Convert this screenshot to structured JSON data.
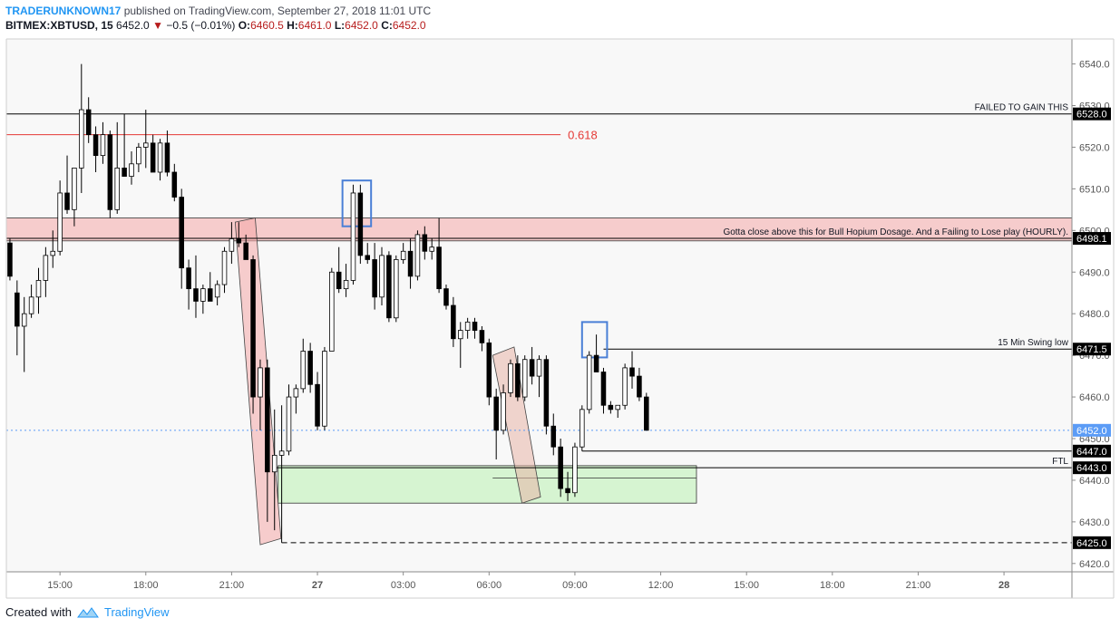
{
  "header": {
    "author": "TRADERUNKNOWN17",
    "published": "published on TradingView.com, September 27, 2018 11:01 UTC",
    "symbol": "BITMEX:XBTUSD, 15",
    "last": "6452.0",
    "change": "−0.5 (−0.01%)",
    "open_label": "O:",
    "open": "6460.5",
    "high_label": "H:",
    "high": "6461.0",
    "low_label": "L:",
    "low": "6452.0",
    "close_label": "C:",
    "close": "6452.0"
  },
  "footer": {
    "created_with": "Created with",
    "brand": "TradingView"
  },
  "colors": {
    "up": "#ffffff",
    "down": "#000000",
    "red_line": "#e53935",
    "zone_red": "#f4a7a7",
    "zone_green": "#b9f0b0",
    "box_blue": "#4a7fd6",
    "price_tag": "#000000",
    "last_tag": "#5b9cf6"
  },
  "chart_data": {
    "type": "candlestick",
    "interval_minutes": 15,
    "ylim": [
      6418,
      6546
    ],
    "y_ticks": [
      6420,
      6430,
      6440,
      6450,
      6460,
      6470,
      6480,
      6490,
      6500,
      6510,
      6520,
      6530,
      6540
    ],
    "x_ticks": [
      {
        "t": 0,
        "label": "15:00"
      },
      {
        "t": 12,
        "label": "18:00"
      },
      {
        "t": 24,
        "label": "21:00"
      },
      {
        "t": 36,
        "label": "27"
      },
      {
        "t": 48,
        "label": "03:00"
      },
      {
        "t": 60,
        "label": "06:00"
      },
      {
        "t": 72,
        "label": "09:00"
      },
      {
        "t": 84,
        "label": "12:00"
      },
      {
        "t": 96,
        "label": "15:00"
      },
      {
        "t": 108,
        "label": "18:00"
      },
      {
        "t": 120,
        "label": "21:00"
      },
      {
        "t": 132,
        "label": "28"
      }
    ],
    "x_range": [
      -7.5,
      141.5
    ],
    "candles": [
      {
        "t": -7,
        "o": 6497,
        "h": 6498,
        "l": 6488,
        "c": 6489
      },
      {
        "t": -6,
        "o": 6485,
        "h": 6488,
        "l": 6470,
        "c": 6477
      },
      {
        "t": -5,
        "o": 6477,
        "h": 6484,
        "l": 6466,
        "c": 6480
      },
      {
        "t": -4,
        "o": 6480,
        "h": 6487,
        "l": 6479,
        "c": 6484
      },
      {
        "t": -3,
        "o": 6484,
        "h": 6491,
        "l": 6480,
        "c": 6488
      },
      {
        "t": -2,
        "o": 6488,
        "h": 6496,
        "l": 6484,
        "c": 6494
      },
      {
        "t": -1,
        "o": 6494,
        "h": 6500,
        "l": 6491,
        "c": 6495
      },
      {
        "t": 0,
        "o": 6495,
        "h": 6512,
        "l": 6494,
        "c": 6509
      },
      {
        "t": 1,
        "o": 6509,
        "h": 6518,
        "l": 6504,
        "c": 6505
      },
      {
        "t": 2,
        "o": 6505,
        "h": 6514,
        "l": 6501,
        "c": 6515
      },
      {
        "t": 3,
        "o": 6515,
        "h": 6540,
        "l": 6509,
        "c": 6529
      },
      {
        "t": 4,
        "o": 6529,
        "h": 6532,
        "l": 6521,
        "c": 6523
      },
      {
        "t": 5,
        "o": 6523,
        "h": 6525,
        "l": 6514,
        "c": 6518
      },
      {
        "t": 6,
        "o": 6518,
        "h": 6526,
        "l": 6516,
        "c": 6523
      },
      {
        "t": 7,
        "o": 6523,
        "h": 6524,
        "l": 6503,
        "c": 6505
      },
      {
        "t": 8,
        "o": 6505,
        "h": 6526,
        "l": 6504,
        "c": 6515
      },
      {
        "t": 9,
        "o": 6515,
        "h": 6528,
        "l": 6513,
        "c": 6513
      },
      {
        "t": 10,
        "o": 6513,
        "h": 6519,
        "l": 6511,
        "c": 6516
      },
      {
        "t": 11,
        "o": 6516,
        "h": 6521,
        "l": 6514,
        "c": 6520
      },
      {
        "t": 12,
        "o": 6520,
        "h": 6529,
        "l": 6515,
        "c": 6521
      },
      {
        "t": 13,
        "o": 6521,
        "h": 6523,
        "l": 6514,
        "c": 6514
      },
      {
        "t": 14,
        "o": 6514,
        "h": 6522,
        "l": 6512,
        "c": 6521
      },
      {
        "t": 15,
        "o": 6521,
        "h": 6524,
        "l": 6513,
        "c": 6514
      },
      {
        "t": 16,
        "o": 6514,
        "h": 6516,
        "l": 6507,
        "c": 6508
      },
      {
        "t": 17,
        "o": 6508,
        "h": 6510,
        "l": 6486,
        "c": 6491
      },
      {
        "t": 18,
        "o": 6491,
        "h": 6493,
        "l": 6481,
        "c": 6486
      },
      {
        "t": 19,
        "o": 6486,
        "h": 6494,
        "l": 6479,
        "c": 6483
      },
      {
        "t": 20,
        "o": 6483,
        "h": 6487,
        "l": 6480,
        "c": 6486
      },
      {
        "t": 21,
        "o": 6486,
        "h": 6490,
        "l": 6483,
        "c": 6483
      },
      {
        "t": 22,
        "o": 6484,
        "h": 6488,
        "l": 6482,
        "c": 6487
      },
      {
        "t": 23,
        "o": 6487,
        "h": 6496,
        "l": 6485,
        "c": 6495
      },
      {
        "t": 24,
        "o": 6495,
        "h": 6502,
        "l": 6492,
        "c": 6498
      },
      {
        "t": 25,
        "o": 6498,
        "h": 6502,
        "l": 6496,
        "c": 6497
      },
      {
        "t": 26,
        "o": 6497,
        "h": 6499,
        "l": 6493,
        "c": 6493
      },
      {
        "t": 27,
        "o": 6493,
        "h": 6494,
        "l": 6456,
        "c": 6460
      },
      {
        "t": 28,
        "o": 6460,
        "h": 6469,
        "l": 6452,
        "c": 6467
      },
      {
        "t": 29,
        "o": 6467,
        "h": 6469,
        "l": 6430,
        "c": 6442
      },
      {
        "t": 30,
        "o": 6442,
        "h": 6457,
        "l": 6428,
        "c": 6446
      },
      {
        "t": 31,
        "o": 6446,
        "h": 6458,
        "l": 6425,
        "c": 6447
      },
      {
        "t": 32,
        "o": 6447,
        "h": 6463,
        "l": 6446,
        "c": 6460
      },
      {
        "t": 33,
        "o": 6460,
        "h": 6463,
        "l": 6456,
        "c": 6462
      },
      {
        "t": 34,
        "o": 6462,
        "h": 6474,
        "l": 6461,
        "c": 6471
      },
      {
        "t": 35,
        "o": 6471,
        "h": 6473,
        "l": 6461,
        "c": 6463
      },
      {
        "t": 36,
        "o": 6463,
        "h": 6466,
        "l": 6452,
        "c": 6453
      },
      {
        "t": 37,
        "o": 6453,
        "h": 6472,
        "l": 6452,
        "c": 6471
      },
      {
        "t": 38,
        "o": 6471,
        "h": 6491,
        "l": 6471,
        "c": 6490
      },
      {
        "t": 39,
        "o": 6490,
        "h": 6496,
        "l": 6485,
        "c": 6486
      },
      {
        "t": 40,
        "o": 6486,
        "h": 6492,
        "l": 6484,
        "c": 6488
      },
      {
        "t": 41,
        "o": 6488,
        "h": 6511,
        "l": 6487,
        "c": 6509
      },
      {
        "t": 42,
        "o": 6509,
        "h": 6511,
        "l": 6492,
        "c": 6494
      },
      {
        "t": 43,
        "o": 6494,
        "h": 6497,
        "l": 6492,
        "c": 6493
      },
      {
        "t": 44,
        "o": 6493,
        "h": 6497,
        "l": 6481,
        "c": 6484
      },
      {
        "t": 45,
        "o": 6484,
        "h": 6496,
        "l": 6482,
        "c": 6494
      },
      {
        "t": 46,
        "o": 6494,
        "h": 6495,
        "l": 6478,
        "c": 6479
      },
      {
        "t": 47,
        "o": 6479,
        "h": 6494,
        "l": 6478,
        "c": 6493
      },
      {
        "t": 48,
        "o": 6493,
        "h": 6497,
        "l": 6492,
        "c": 6495
      },
      {
        "t": 49,
        "o": 6495,
        "h": 6498,
        "l": 6486,
        "c": 6489
      },
      {
        "t": 50,
        "o": 6489,
        "h": 6500,
        "l": 6488,
        "c": 6499
      },
      {
        "t": 51,
        "o": 6499,
        "h": 6501,
        "l": 6493,
        "c": 6495
      },
      {
        "t": 52,
        "o": 6495,
        "h": 6498,
        "l": 6493,
        "c": 6496
      },
      {
        "t": 53,
        "o": 6496,
        "h": 6503,
        "l": 6485,
        "c": 6486
      },
      {
        "t": 54,
        "o": 6486,
        "h": 6487,
        "l": 6481,
        "c": 6482
      },
      {
        "t": 55,
        "o": 6482,
        "h": 6484,
        "l": 6472,
        "c": 6474
      },
      {
        "t": 56,
        "o": 6474,
        "h": 6478,
        "l": 6467,
        "c": 6476
      },
      {
        "t": 57,
        "o": 6476,
        "h": 6479,
        "l": 6474,
        "c": 6478
      },
      {
        "t": 58,
        "o": 6478,
        "h": 6479,
        "l": 6474,
        "c": 6476
      },
      {
        "t": 59,
        "o": 6476,
        "h": 6477,
        "l": 6471,
        "c": 6473
      },
      {
        "t": 60,
        "o": 6473,
        "h": 6474,
        "l": 6458,
        "c": 6460
      },
      {
        "t": 61,
        "o": 6460,
        "h": 6462,
        "l": 6445,
        "c": 6452
      },
      {
        "t": 62,
        "o": 6452,
        "h": 6463,
        "l": 6451,
        "c": 6461
      },
      {
        "t": 63,
        "o": 6461,
        "h": 6469,
        "l": 6460,
        "c": 6468
      },
      {
        "t": 64,
        "o": 6468,
        "h": 6470,
        "l": 6459,
        "c": 6460
      },
      {
        "t": 65,
        "o": 6460,
        "h": 6470,
        "l": 6459,
        "c": 6469
      },
      {
        "t": 66,
        "o": 6469,
        "h": 6472,
        "l": 6463,
        "c": 6465
      },
      {
        "t": 67,
        "o": 6465,
        "h": 6470,
        "l": 6460,
        "c": 6469
      },
      {
        "t": 68,
        "o": 6469,
        "h": 6470,
        "l": 6451,
        "c": 6453
      },
      {
        "t": 69,
        "o": 6453,
        "h": 6456,
        "l": 6446,
        "c": 6448
      },
      {
        "t": 70,
        "o": 6448,
        "h": 6450,
        "l": 6436,
        "c": 6438
      },
      {
        "t": 71,
        "o": 6438,
        "h": 6442,
        "l": 6435,
        "c": 6437
      },
      {
        "t": 72,
        "o": 6437,
        "h": 6449,
        "l": 6436,
        "c": 6448
      },
      {
        "t": 73,
        "o": 6448,
        "h": 6458,
        "l": 6447,
        "c": 6457
      },
      {
        "t": 74,
        "o": 6457,
        "h": 6471,
        "l": 6456,
        "c": 6470
      },
      {
        "t": 75,
        "o": 6470,
        "h": 6475,
        "l": 6466,
        "c": 6466
      },
      {
        "t": 76,
        "o": 6466,
        "h": 6467,
        "l": 6456,
        "c": 6458
      },
      {
        "t": 77,
        "o": 6458,
        "h": 6459,
        "l": 6456,
        "c": 6457
      },
      {
        "t": 78,
        "o": 6457,
        "h": 6458,
        "l": 6455,
        "c": 6458
      },
      {
        "t": 79,
        "o": 6458,
        "h": 6468,
        "l": 6457,
        "c": 6467
      },
      {
        "t": 80,
        "o": 6467,
        "h": 6471,
        "l": 6462,
        "c": 6465
      },
      {
        "t": 81,
        "o": 6465,
        "h": 6467,
        "l": 6459,
        "c": 6460
      },
      {
        "t": 82,
        "o": 6460,
        "h": 6461,
        "l": 6452,
        "c": 6452
      }
    ],
    "horizontal_lines": [
      {
        "y": 6528,
        "color": "#000000",
        "style": "solid",
        "label": "FAILED TO GAIN THIS",
        "label_align": "right",
        "tag": "6528.0"
      },
      {
        "y": 6523,
        "color": "#e53935",
        "style": "solid",
        "label": "0.618",
        "label_align": "end",
        "x_end_t": 70
      },
      {
        "y": 6498.1,
        "color": "#000000",
        "style": "solid",
        "label": "Gotta close above this for Bull Hopium Dosage. And a Failing to Lose play (HOURLY).",
        "label_align": "right",
        "tag": "6498.1"
      },
      {
        "y": 6471.5,
        "color": "#000000",
        "style": "solid",
        "label": "15 Min Swing low",
        "label_align": "right",
        "x_start_t": 76,
        "tag": "6471.5"
      },
      {
        "y": 6447,
        "color": "#000000",
        "style": "solid",
        "label": "",
        "x_start_t": 73,
        "tag": "6447.0"
      },
      {
        "y": 6443,
        "color": "#000000",
        "style": "solid",
        "label": "FTL",
        "label_align": "right",
        "x_start_t": 30,
        "tag": "6443.0"
      },
      {
        "y": 6425,
        "color": "#000000",
        "style": "dashed",
        "label": "",
        "x_start_t": 31,
        "tag": "6425.0"
      },
      {
        "y": 6452,
        "color": "#5b9cf6",
        "style": "dotted",
        "label": "",
        "tag": "6452.0",
        "tag_color": "#5b9cf6"
      }
    ],
    "zones": [
      {
        "type": "rect",
        "y1": 6497.5,
        "y2": 6503,
        "t1": -7.5,
        "t2": 141.5,
        "color": "#f4a7a7"
      },
      {
        "type": "rect",
        "y1": 6434.5,
        "y2": 6443.5,
        "t1": 30.5,
        "t2": 89,
        "color": "#b9f0b0"
      }
    ],
    "rotated_zones": [
      {
        "points": [
          [
            24.5,
            6502
          ],
          [
            27.3,
            6503
          ],
          [
            30.9,
            6426
          ],
          [
            28,
            6424.5
          ]
        ],
        "color": "#f4a7a7"
      },
      {
        "points": [
          [
            60.5,
            6470
          ],
          [
            63.5,
            6472
          ],
          [
            67.2,
            6436
          ],
          [
            64.6,
            6434.5
          ]
        ],
        "color": "#e8b4a8"
      }
    ],
    "blue_boxes": [
      {
        "t1": 39.5,
        "t2": 43.5,
        "y1": 6501,
        "y2": 6512
      },
      {
        "t1": 73,
        "t2": 76.5,
        "y1": 6469.5,
        "y2": 6478
      }
    ]
  }
}
